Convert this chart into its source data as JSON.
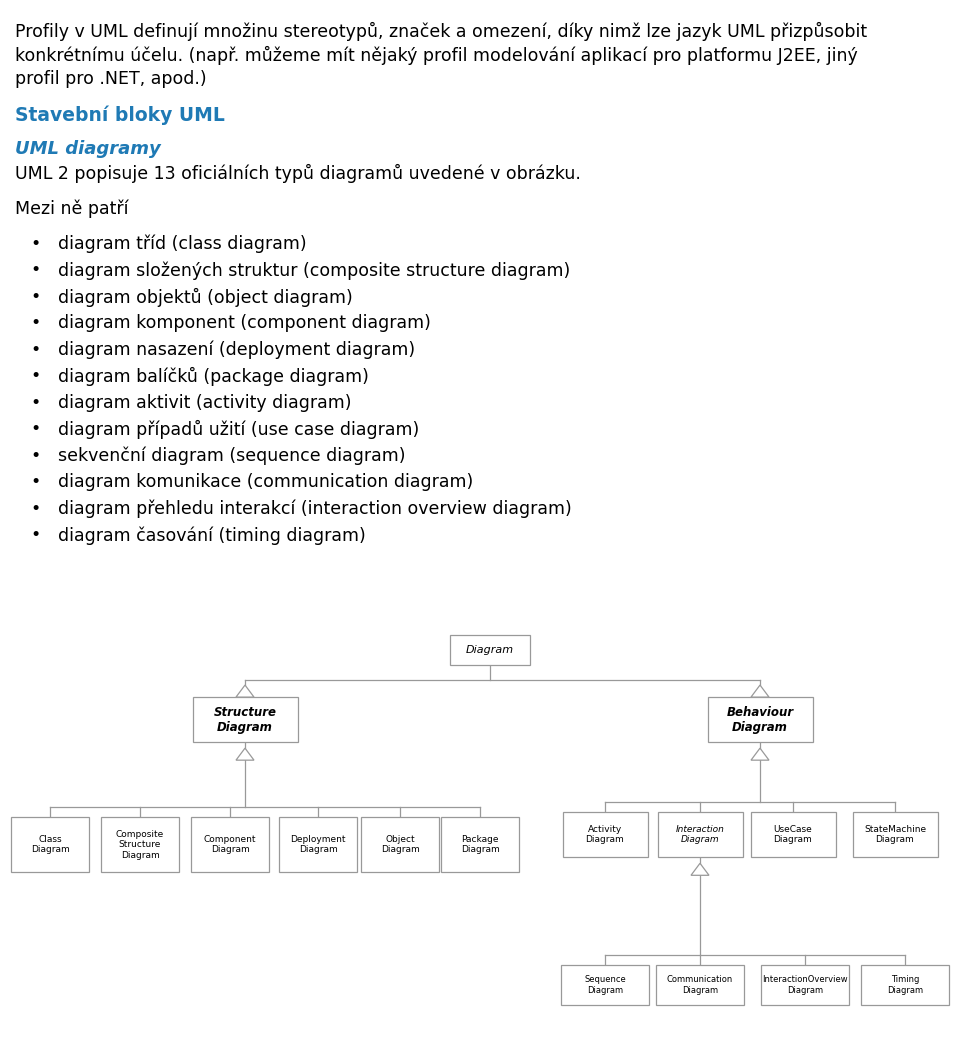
{
  "bg_color": "#ffffff",
  "text_color": "#000000",
  "heading_color": "#1f7ab5",
  "para1": "Profily v UML definují množinu stereotypů, značek a omezení, díky nimž lze jazyk UML přizpůsobit",
  "para2": "konkrétnímu účelu. (např. můžeme mít nějaký profil modelování aplikací pro platformu J2EE, jiný",
  "para3": "profil pro .NET, apod.)",
  "heading1": "Stavební bloky UML",
  "heading2": "UML diagramy",
  "para4": "UML 2 popisuje 13 oficiálních typů diagramů uvedené v obrázku.",
  "para5": "Mezi ně patří",
  "bullet_items": [
    "diagram tříd (class diagram)",
    "diagram složených struktur (composite structure diagram)",
    "diagram objektů (object diagram)",
    "diagram komponent (component diagram)",
    "diagram nasazení (deployment diagram)",
    "diagram balíčků (package diagram)",
    "diagram aktivit (activity diagram)",
    "diagram případů užití (use case diagram)",
    "sekvenční diagram (sequence diagram)",
    "diagram komunikace (communication diagram)",
    "diagram přehledu interakcí (interaction overview diagram)",
    "diagram časování (timing diagram)"
  ]
}
